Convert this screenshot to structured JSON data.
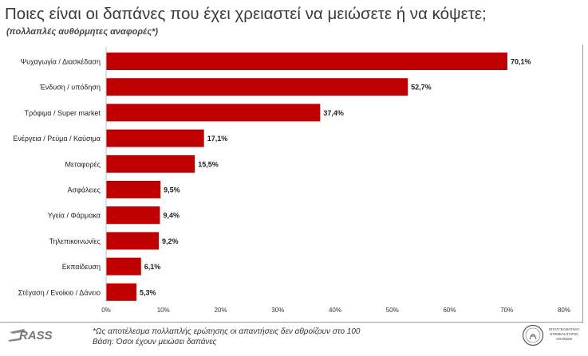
{
  "header": {
    "title": "Ποιες είναι οι δαπάνες που έχει χρειαστεί να μειώσετε ή να κόψετε;",
    "subtitle": "(πολλαπλές αυθόρμητες αναφορές*)"
  },
  "chart_data": {
    "type": "bar",
    "orientation": "horizontal",
    "categories": [
      "Ψυχαγωγία / Διασκέδαση",
      "Ένδυση / υπόδηση",
      "Τρόφιμα / Super market",
      "Ενέργεια / Ρεύμα / Καύσιμα",
      "Μεταφορές",
      "Ασφάλειες",
      "Υγεία / Φάρμακα",
      "Τηλεπικοινωνίες",
      "Εκπαίδευση",
      "Στέγαση / Ενοίκιο / Δάνειο"
    ],
    "values": [
      70.1,
      52.7,
      37.4,
      17.1,
      15.5,
      9.5,
      9.4,
      9.2,
      6.1,
      5.3
    ],
    "value_labels": [
      "70,1%",
      "52,7%",
      "37,4%",
      "17,1%",
      "15,5%",
      "9,5%",
      "9,4%",
      "9,2%",
      "6,1%",
      "5,3%"
    ],
    "xlim": [
      0,
      80
    ],
    "ticks": [
      0,
      10,
      20,
      30,
      40,
      50,
      60,
      70,
      80
    ],
    "tick_labels": [
      "0%",
      "10%",
      "20%",
      "30%",
      "40%",
      "50%",
      "60%",
      "70%",
      "80%"
    ],
    "bar_color": "#c00000",
    "grid": false
  },
  "footer": {
    "logo": "RASS",
    "note_line1": "*Ως αποτέλεσμα πολλαπλής ερώτησης οι απαντήσεις δεν αθροίζουν στο 100",
    "note_line2": "Βάση: Όσοι έχουν μειώσει δαπάνες",
    "seal_line1": "ΕΠΑΓΓΕΛΜΑΤΙΚΟ",
    "seal_line2": "ΕΠΙΜΕΛΗΤΗΡΙΟ",
    "seal_line3": "ΑΘΗΝΩΝ"
  }
}
